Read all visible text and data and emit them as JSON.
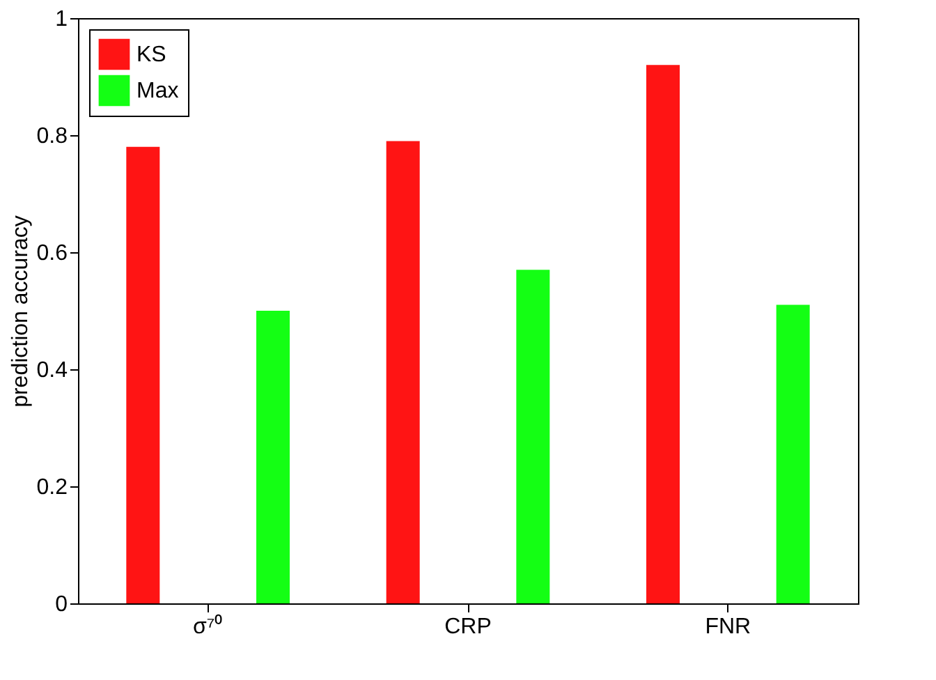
{
  "chart_data": {
    "type": "bar",
    "ylabel": "prediction accuracy",
    "categories": [
      "σ⁷⁰",
      "CRP",
      "FNR"
    ],
    "series": [
      {
        "name": "KS",
        "color": "#ff1414",
        "values": [
          0.78,
          0.79,
          0.92
        ]
      },
      {
        "name": "Max",
        "color": "#14ff14",
        "values": [
          0.5,
          0.57,
          0.51
        ]
      }
    ],
    "ylim": [
      0,
      1
    ],
    "yticks": [
      0,
      0.2,
      0.4,
      0.6,
      0.8,
      1
    ],
    "grid": false,
    "legend": "top left"
  }
}
